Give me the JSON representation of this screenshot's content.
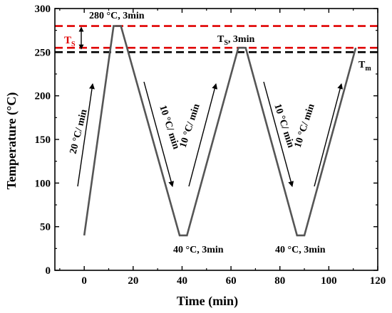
{
  "chart_data": {
    "type": "line",
    "xlabel": "Time (min)",
    "ylabel": "Temperature (°C)",
    "xlim": [
      -12,
      120
    ],
    "ylim": [
      0,
      300
    ],
    "xticks": [
      0,
      20,
      40,
      60,
      80,
      100,
      120
    ],
    "yticks": [
      0,
      50,
      100,
      150,
      200,
      250,
      300
    ],
    "series": [
      {
        "color": "#555555",
        "x": [
          0,
          12,
          15,
          39,
          42,
          63,
          66,
          87,
          90,
          111
        ],
        "y": [
          40,
          280,
          280,
          40,
          40,
          255,
          255,
          40,
          40,
          255
        ]
      }
    ],
    "reference_lines": [
      {
        "y": 280,
        "color": "#e00000",
        "style": "dashed"
      },
      {
        "y": 255,
        "color": "#e00000",
        "style": "dashed"
      },
      {
        "y": 250,
        "color": "#000000",
        "style": "dashed"
      }
    ],
    "annotations": {
      "peak1": "280 °C, 3min",
      "ts_main": "T",
      "ts_sub": "S",
      "ts_tail": ",  3min",
      "tm_main": "T",
      "tm_sub": "m",
      "ts_red_main": "T",
      "ts_red_sub": "S",
      "low1": "40 °C, 3min",
      "low2": "40 °C, 3min",
      "rate1": "20 °C/ min",
      "rate2": "10 °C/ min",
      "rate3": "10 °C/ min",
      "rate4": "10 °C/ min",
      "rate5": "10 °C/ min"
    }
  }
}
